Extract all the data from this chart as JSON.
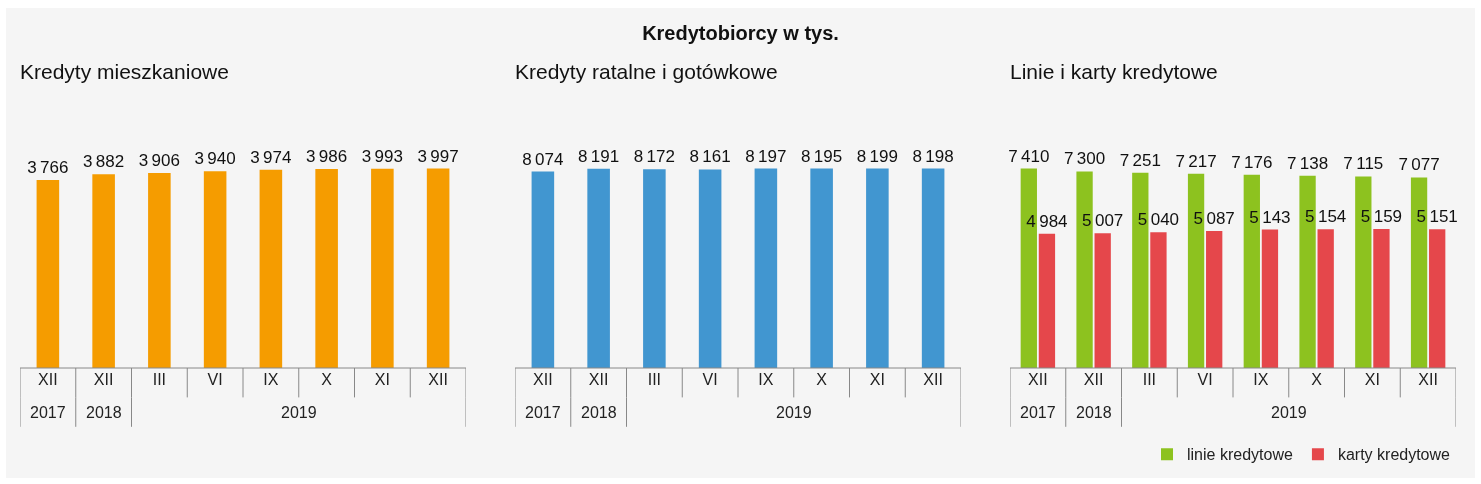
{
  "chart_data": [
    {
      "type": "other",
      "title": "Kredytobiorcy w tys."
    },
    {
      "type": "bar",
      "title": "Kredyty mieszkaniowe",
      "categories": [
        "XII",
        "XII",
        "III",
        "VI",
        "IX",
        "X",
        "XI",
        "XII"
      ],
      "values": [
        3766,
        3882,
        3906,
        3940,
        3974,
        3986,
        3993,
        3997
      ],
      "color": "#f59c00",
      "data_labels": true,
      "annotations": [
        "2017",
        "2018",
        "2019"
      ]
    },
    {
      "type": "bar",
      "title": "Kredyty ratalne i gotówkowe",
      "categories": [
        "XII",
        "XII",
        "III",
        "VI",
        "IX",
        "X",
        "XI",
        "XII"
      ],
      "values": [
        8074,
        8191,
        8172,
        8161,
        8197,
        8195,
        8199,
        8198
      ],
      "color": "#4196d0",
      "data_labels": true,
      "annotations": [
        "2017",
        "2018",
        "2019"
      ]
    },
    {
      "type": "bar",
      "title": "Linie i karty kredytowe",
      "categories": [
        "XII",
        "XII",
        "III",
        "VI",
        "IX",
        "X",
        "XI",
        "XII"
      ],
      "series": [
        {
          "name": "linie kredytowe",
          "color": "#8dc21f",
          "values": [
            7410,
            7300,
            7251,
            7217,
            7176,
            7138,
            7115,
            7077
          ]
        },
        {
          "name": "karty kredytowe",
          "color": "#e5474b",
          "values": [
            4984,
            5007,
            5040,
            5087,
            5143,
            5154,
            5159,
            5151
          ]
        }
      ],
      "data_labels": true,
      "annotations": [
        "2017",
        "2018",
        "2019"
      ],
      "legend": "bottom right"
    }
  ]
}
